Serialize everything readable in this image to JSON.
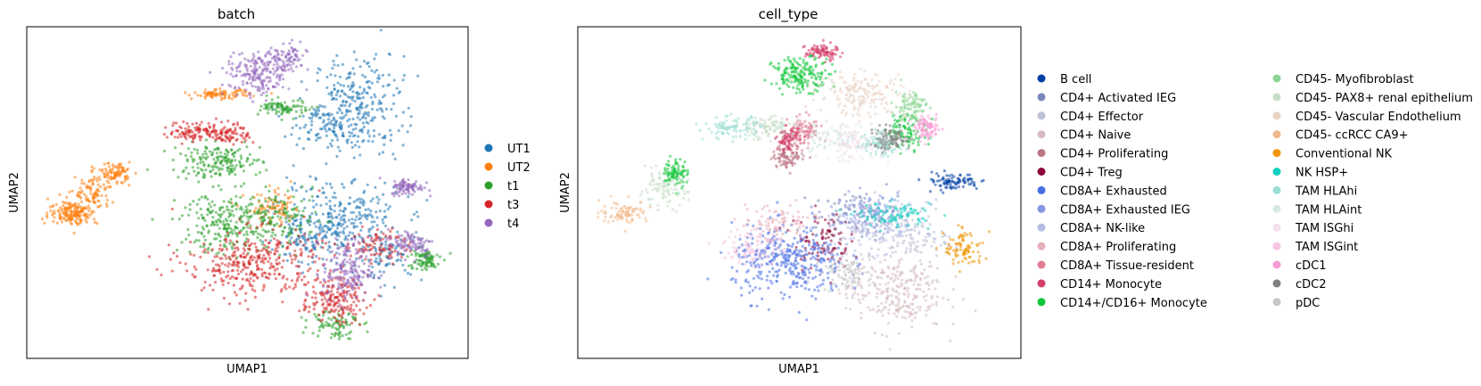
{
  "chart_data": [
    {
      "type": "scatter",
      "title": "batch",
      "xlabel": "UMAP1",
      "ylabel": "UMAP2",
      "grid": false,
      "legend_placement": "right",
      "series": [
        {
          "name": "UT1",
          "color": "#1f77b4",
          "clusters": [
            {
              "x": 7.6,
              "y": 6.2,
              "sx": 0.55,
              "sy": 0.9,
              "w": 3
            },
            {
              "x": 6.7,
              "y": 5.5,
              "sx": 0.45,
              "sy": 0.35,
              "w": 1
            },
            {
              "x": 7.1,
              "y": 2.2,
              "sx": 0.75,
              "sy": 0.65,
              "w": 3
            },
            {
              "x": 6.3,
              "y": 1.3,
              "sx": 0.45,
              "sy": 0.35,
              "w": 1
            },
            {
              "x": 8.3,
              "y": 0.9,
              "sx": 0.45,
              "sy": 0.45,
              "w": 1
            }
          ]
        },
        {
          "name": "UT2",
          "color": "#ff7f0e",
          "clusters": [
            {
              "x": 0.55,
              "y": 2.4,
              "sx": 0.3,
              "sy": 0.22,
              "w": 2
            },
            {
              "x": 1.05,
              "y": 3.1,
              "sx": 0.22,
              "sy": 0.35,
              "w": 1
            },
            {
              "x": 1.6,
              "y": 3.8,
              "sx": 0.18,
              "sy": 0.18,
              "w": 1
            },
            {
              "x": 4.2,
              "y": 6.6,
              "sx": 0.35,
              "sy": 0.08,
              "w": 1
            },
            {
              "x": 5.5,
              "y": 2.5,
              "sx": 0.35,
              "sy": 0.3,
              "w": 1
            }
          ]
        },
        {
          "name": "t1",
          "color": "#2ca02c",
          "clusters": [
            {
              "x": 4.5,
              "y": 2.0,
              "sx": 0.65,
              "sy": 0.55,
              "w": 3
            },
            {
              "x": 5.8,
              "y": 2.2,
              "sx": 0.45,
              "sy": 0.45,
              "w": 1
            },
            {
              "x": 4.1,
              "y": 4.2,
              "sx": 0.55,
              "sy": 0.3,
              "w": 2
            },
            {
              "x": 7.0,
              "y": -1.5,
              "sx": 0.3,
              "sy": 0.3,
              "w": 1
            },
            {
              "x": 9.2,
              "y": 0.7,
              "sx": 0.2,
              "sy": 0.2,
              "w": 1
            },
            {
              "x": 5.8,
              "y": 6.1,
              "sx": 0.3,
              "sy": 0.15,
              "w": 1
            }
          ]
        },
        {
          "name": "t3",
          "color": "#d62728",
          "clusters": [
            {
              "x": 5.0,
              "y": 0.6,
              "sx": 0.85,
              "sy": 0.6,
              "w": 4
            },
            {
              "x": 7.0,
              "y": -0.7,
              "sx": 0.4,
              "sy": 0.4,
              "w": 2
            },
            {
              "x": 8.1,
              "y": 1.2,
              "sx": 0.35,
              "sy": 0.3,
              "w": 1
            },
            {
              "x": 3.5,
              "y": 5.3,
              "sx": 0.3,
              "sy": 0.18,
              "w": 1
            },
            {
              "x": 4.4,
              "y": 5.2,
              "sx": 0.25,
              "sy": 0.18,
              "w": 1
            }
          ]
        },
        {
          "name": "t4",
          "color": "#9467bd",
          "clusters": [
            {
              "x": 5.1,
              "y": 7.3,
              "sx": 0.4,
              "sy": 0.4,
              "w": 2
            },
            {
              "x": 5.8,
              "y": 7.8,
              "sx": 0.25,
              "sy": 0.3,
              "w": 1
            },
            {
              "x": 7.3,
              "y": 0.3,
              "sx": 0.3,
              "sy": 0.55,
              "w": 2
            },
            {
              "x": 8.9,
              "y": 1.3,
              "sx": 0.3,
              "sy": 0.25,
              "w": 1
            },
            {
              "x": 8.8,
              "y": 3.3,
              "sx": 0.2,
              "sy": 0.15,
              "w": 1
            }
          ]
        }
      ]
    },
    {
      "type": "scatter",
      "title": "cell_type",
      "xlabel": "UMAP1",
      "ylabel": "UMAP2",
      "grid": false,
      "legend_placement": "right",
      "legend_columns": 2,
      "series": [
        {
          "name": "B cell",
          "color": "#023fa5",
          "clusters": [
            {
              "x": 8.6,
              "y": 3.5,
              "sx": 0.35,
              "sy": 0.15,
              "w": 1
            }
          ]
        },
        {
          "name": "CD4+ Activated IEG",
          "color": "#7d87b9",
          "clusters": [
            {
              "x": 6.2,
              "y": 2.3,
              "sx": 0.5,
              "sy": 0.4,
              "w": 1
            }
          ]
        },
        {
          "name": "CD4+ Effector",
          "color": "#bec1d4",
          "clusters": [
            {
              "x": 7.6,
              "y": 1.5,
              "sx": 0.45,
              "sy": 0.45,
              "w": 1
            }
          ]
        },
        {
          "name": "CD4+ Naive",
          "color": "#d6bcc0",
          "clusters": [
            {
              "x": 7.2,
              "y": -0.4,
              "sx": 0.6,
              "sy": 0.7,
              "w": 3
            }
          ]
        },
        {
          "name": "CD4+ Proliferating",
          "color": "#bb7784",
          "clusters": [
            {
              "x": 4.6,
              "y": 4.4,
              "sx": 0.2,
              "sy": 0.2,
              "w": 1
            }
          ]
        },
        {
          "name": "CD4+ Treg",
          "color": "#8e063b",
          "clusters": [
            {
              "x": 5.4,
              "y": 1.4,
              "sx": 0.35,
              "sy": 0.5,
              "w": 1
            }
          ]
        },
        {
          "name": "CD8A+ Exhausted",
          "color": "#4a6fe3",
          "clusters": [
            {
              "x": 4.6,
              "y": 0.6,
              "sx": 0.7,
              "sy": 0.65,
              "w": 4
            }
          ]
        },
        {
          "name": "CD8A+ Exhausted IEG",
          "color": "#8595e1",
          "clusters": [
            {
              "x": 6.6,
              "y": 2.5,
              "sx": 0.5,
              "sy": 0.3,
              "w": 1
            }
          ]
        },
        {
          "name": "CD8A+ NK-like",
          "color": "#b5bbe3",
          "clusters": [
            {
              "x": 6.8,
              "y": 1.9,
              "sx": 0.6,
              "sy": 0.45,
              "w": 2
            }
          ]
        },
        {
          "name": "CD8A+ Proliferating",
          "color": "#e6afb9",
          "clusters": [
            {
              "x": 4.3,
              "y": 2.0,
              "sx": 0.45,
              "sy": 0.35,
              "w": 1
            }
          ]
        },
        {
          "name": "CD8A+ Tissue-resident",
          "color": "#e07b91",
          "clusters": [
            {
              "x": 5.0,
              "y": 5.3,
              "sx": 0.2,
              "sy": 0.25,
              "w": 1
            }
          ]
        },
        {
          "name": "CD14+ Monocyte",
          "color": "#d33f6a",
          "clusters": [
            {
              "x": 5.4,
              "y": 8.1,
              "sx": 0.2,
              "sy": 0.15,
              "w": 1
            },
            {
              "x": 4.6,
              "y": 5.0,
              "sx": 0.15,
              "sy": 0.2,
              "w": 1
            }
          ]
        },
        {
          "name": "CD14+/CD16+ Monocyte",
          "color": "#11c638",
          "clusters": [
            {
              "x": 4.9,
              "y": 7.3,
              "sx": 0.35,
              "sy": 0.3,
              "w": 2
            },
            {
              "x": 7.5,
              "y": 5.3,
              "sx": 0.25,
              "sy": 0.3,
              "w": 1
            },
            {
              "x": 1.8,
              "y": 3.8,
              "sx": 0.15,
              "sy": 0.25,
              "w": 1
            }
          ]
        },
        {
          "name": "CD45- Myofibroblast",
          "color": "#8dd593",
          "clusters": [
            {
              "x": 7.6,
              "y": 6.2,
              "sx": 0.2,
              "sy": 0.3,
              "w": 1
            }
          ]
        },
        {
          "name": "CD45- PAX8+ renal epithelium",
          "color": "#c6dec7",
          "clusters": [
            {
              "x": 4.0,
              "y": 5.4,
              "sx": 0.35,
              "sy": 0.2,
              "w": 1
            },
            {
              "x": 1.5,
              "y": 3.2,
              "sx": 0.3,
              "sy": 0.3,
              "w": 1
            }
          ]
        },
        {
          "name": "CD45- Vascular Endothelium",
          "color": "#ead3c6",
          "clusters": [
            {
              "x": 6.4,
              "y": 6.6,
              "sx": 0.55,
              "sy": 0.4,
              "w": 2
            }
          ]
        },
        {
          "name": "CD45- ccRCC CA9+",
          "color": "#f0b98d",
          "clusters": [
            {
              "x": 0.55,
              "y": 2.4,
              "sx": 0.3,
              "sy": 0.2,
              "w": 1
            }
          ]
        },
        {
          "name": "Conventional NK",
          "color": "#ef9708",
          "clusters": [
            {
              "x": 8.9,
              "y": 1.1,
              "sx": 0.25,
              "sy": 0.35,
              "w": 1
            }
          ]
        },
        {
          "name": "NK HSP+",
          "color": "#0fcfc0",
          "clusters": [
            {
              "x": 7.2,
              "y": 2.3,
              "sx": 0.45,
              "sy": 0.2,
              "w": 1
            }
          ]
        },
        {
          "name": "TAM HLAhi",
          "color": "#9cded6",
          "clusters": [
            {
              "x": 3.2,
              "y": 5.4,
              "sx": 0.35,
              "sy": 0.2,
              "w": 1
            },
            {
              "x": 6.8,
              "y": 4.8,
              "sx": 0.3,
              "sy": 0.2,
              "w": 1
            }
          ]
        },
        {
          "name": "TAM HLAint",
          "color": "#d5eae7",
          "clusters": [
            {
              "x": 5.6,
              "y": 5.0,
              "sx": 0.4,
              "sy": 0.3,
              "w": 1
            }
          ]
        },
        {
          "name": "TAM ISGhi",
          "color": "#f3e1eb",
          "clusters": [
            {
              "x": 6.2,
              "y": 4.8,
              "sx": 0.35,
              "sy": 0.3,
              "w": 1
            }
          ]
        },
        {
          "name": "TAM ISGint",
          "color": "#f6c4e1",
          "clusters": [
            {
              "x": 3.7,
              "y": 1.2,
              "sx": 0.35,
              "sy": 0.35,
              "w": 1
            }
          ]
        },
        {
          "name": "cDC1",
          "color": "#f79cd4",
          "clusters": [
            {
              "x": 8.0,
              "y": 5.4,
              "sx": 0.15,
              "sy": 0.2,
              "w": 1
            }
          ]
        },
        {
          "name": "cDC2",
          "color": "#7f7f7f",
          "clusters": [
            {
              "x": 7.1,
              "y": 5.0,
              "sx": 0.25,
              "sy": 0.2,
              "w": 1
            }
          ]
        },
        {
          "name": "pDC",
          "color": "#c7c7c7",
          "clusters": [
            {
              "x": 6.0,
              "y": 0.2,
              "sx": 0.3,
              "sy": 0.3,
              "w": 1
            }
          ]
        }
      ]
    }
  ]
}
